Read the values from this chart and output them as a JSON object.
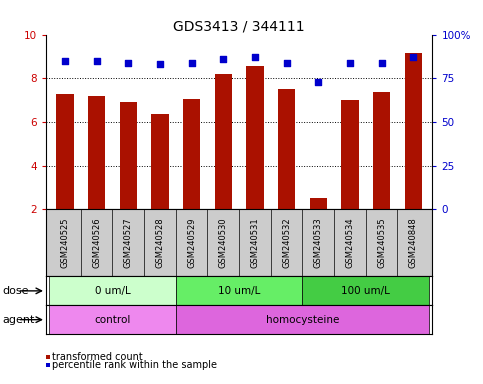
{
  "title": "GDS3413 / 344111",
  "samples": [
    "GSM240525",
    "GSM240526",
    "GSM240527",
    "GSM240528",
    "GSM240529",
    "GSM240530",
    "GSM240531",
    "GSM240532",
    "GSM240533",
    "GSM240534",
    "GSM240535",
    "GSM240848"
  ],
  "transformed_count": [
    7.3,
    7.2,
    6.9,
    6.35,
    7.05,
    8.2,
    8.55,
    7.5,
    2.5,
    7.0,
    7.35,
    9.15
  ],
  "percentile_rank": [
    85,
    85,
    84,
    83,
    84,
    86,
    87,
    84,
    73,
    84,
    84,
    87
  ],
  "bar_color": "#AA1100",
  "dot_color": "#0000CC",
  "bar_bottom": 2.0,
  "ylim_left": [
    2,
    10
  ],
  "ylim_right": [
    0,
    100
  ],
  "yticks_left": [
    2,
    4,
    6,
    8,
    10
  ],
  "yticks_right": [
    0,
    25,
    50,
    75,
    100
  ],
  "ylabel_left_color": "#CC0000",
  "ylabel_right_color": "#0000CC",
  "dose_groups": [
    {
      "label": "0 um/L",
      "start": 0,
      "end": 4,
      "color": "#CCFFCC"
    },
    {
      "label": "10 um/L",
      "start": 4,
      "end": 8,
      "color": "#66EE66"
    },
    {
      "label": "100 um/L",
      "start": 8,
      "end": 12,
      "color": "#44CC44"
    }
  ],
  "agent_groups": [
    {
      "label": "control",
      "start": 0,
      "end": 4,
      "color": "#EE88EE"
    },
    {
      "label": "homocysteine",
      "start": 4,
      "end": 12,
      "color": "#DD66DD"
    }
  ],
  "dose_label": "dose",
  "agent_label": "agent",
  "legend_bar_label": "transformed count",
  "legend_dot_label": "percentile rank within the sample",
  "grid_color": "black",
  "bg_color": "white",
  "label_area_bg": "#CCCCCC",
  "tick_label_fontsize": 7.5,
  "title_fontsize": 10,
  "bar_width": 0.55
}
